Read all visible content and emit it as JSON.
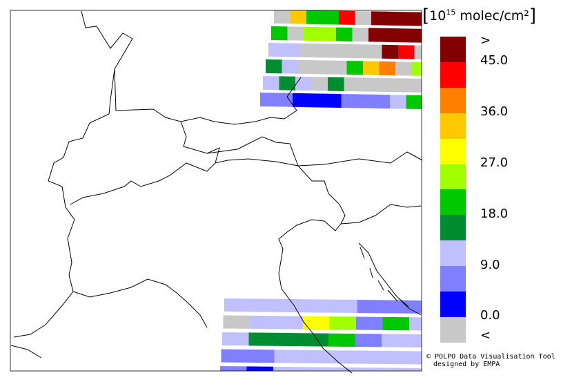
{
  "colors": {
    "map_border": "#000000",
    "band_gap": "#ffffff",
    "pixel_palette": [
      "#c8c8c8",
      "#0000ff",
      "#8080ff",
      "#c0c0ff",
      "#008c30",
      "#00c800",
      "#a0ff00",
      "#ffff00",
      "#ffc800",
      "#ff7f00",
      "#ff0000",
      "#820000"
    ]
  },
  "legend": {
    "unit_open": "[",
    "unit_base": "10",
    "unit_exp": "15",
    "unit_text": " molec/cm²",
    "unit_close": "]",
    "bins": [
      {
        "color": "#820000"
      },
      {
        "color": "#ff0000"
      },
      {
        "color": "#ff7f00"
      },
      {
        "color": "#ffc800"
      },
      {
        "color": "#ffff00"
      },
      {
        "color": "#a0ff00"
      },
      {
        "color": "#00c800"
      },
      {
        "color": "#008c30"
      },
      {
        "color": "#c0c0ff"
      },
      {
        "color": "#8080ff"
      },
      {
        "color": "#0000ff"
      },
      {
        "color": "#c8c8c8"
      }
    ],
    "labels": [
      ">",
      "45.0",
      "36.0",
      "27.0",
      "18.0",
      "9.0",
      "0.0",
      "<"
    ]
  },
  "credit": {
    "line1": "© POLPO Data Visualisation Tool",
    "line2": "designed by EMPA"
  },
  "pixel_grid": {
    "top_right": [
      [
        0,
        8,
        5,
        5,
        10,
        0,
        11,
        11,
        11,
        11,
        11
      ],
      [
        5,
        0,
        6,
        6,
        5,
        0,
        11,
        11,
        11,
        11,
        11
      ],
      [
        3,
        3,
        0,
        0,
        0,
        0,
        0,
        11,
        10,
        0,
        0
      ],
      [
        4,
        3,
        0,
        0,
        0,
        5,
        8,
        9,
        0,
        6,
        0
      ],
      [
        3,
        4,
        3,
        0,
        4,
        0,
        0,
        0,
        0,
        0,
        6
      ],
      [
        2,
        2,
        1,
        1,
        1,
        2,
        2,
        2,
        3,
        5,
        2
      ]
    ],
    "bottom": [
      [
        3,
        3,
        3,
        3,
        3,
        2,
        2,
        2
      ],
      [
        0,
        3,
        3,
        7,
        6,
        2,
        5,
        3
      ],
      [
        3,
        4,
        4,
        4,
        5,
        2,
        3,
        3
      ],
      [
        2,
        2,
        3,
        3,
        3,
        3,
        3,
        3
      ],
      [
        2,
        1,
        3,
        3,
        3,
        3,
        3,
        3
      ]
    ]
  }
}
